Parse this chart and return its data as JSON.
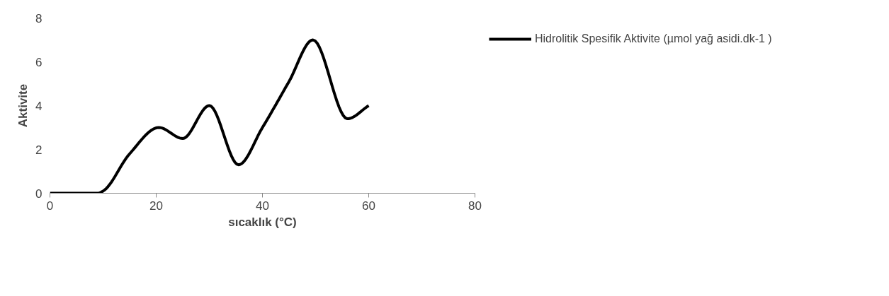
{
  "chart_data": {
    "type": "line",
    "xlabel": "sıcaklık (°C)",
    "ylabel": "Aktivite",
    "x": [
      0,
      5,
      9,
      10,
      15,
      20.5,
      25,
      30,
      35.5,
      40,
      45,
      49.5,
      56,
      60
    ],
    "series": [
      {
        "name": "Hidrolitik Spesifik Aktivite (µmol yağ asidi.dk-1 )",
        "color": "#000000",
        "values": [
          0,
          0,
          0,
          0.1,
          1.8,
          3.0,
          2.5,
          4.0,
          1.3,
          3.0,
          5.1,
          7.0,
          3.4,
          4.0
        ]
      }
    ],
    "xlim": [
      0,
      80
    ],
    "xticks": [
      0,
      20,
      40,
      60,
      80
    ],
    "ylim": [
      0,
      8
    ],
    "yticks": [
      0,
      2,
      4,
      6,
      8
    ],
    "grid": false,
    "legend": "right",
    "marker": "none",
    "line_style": "solid"
  }
}
